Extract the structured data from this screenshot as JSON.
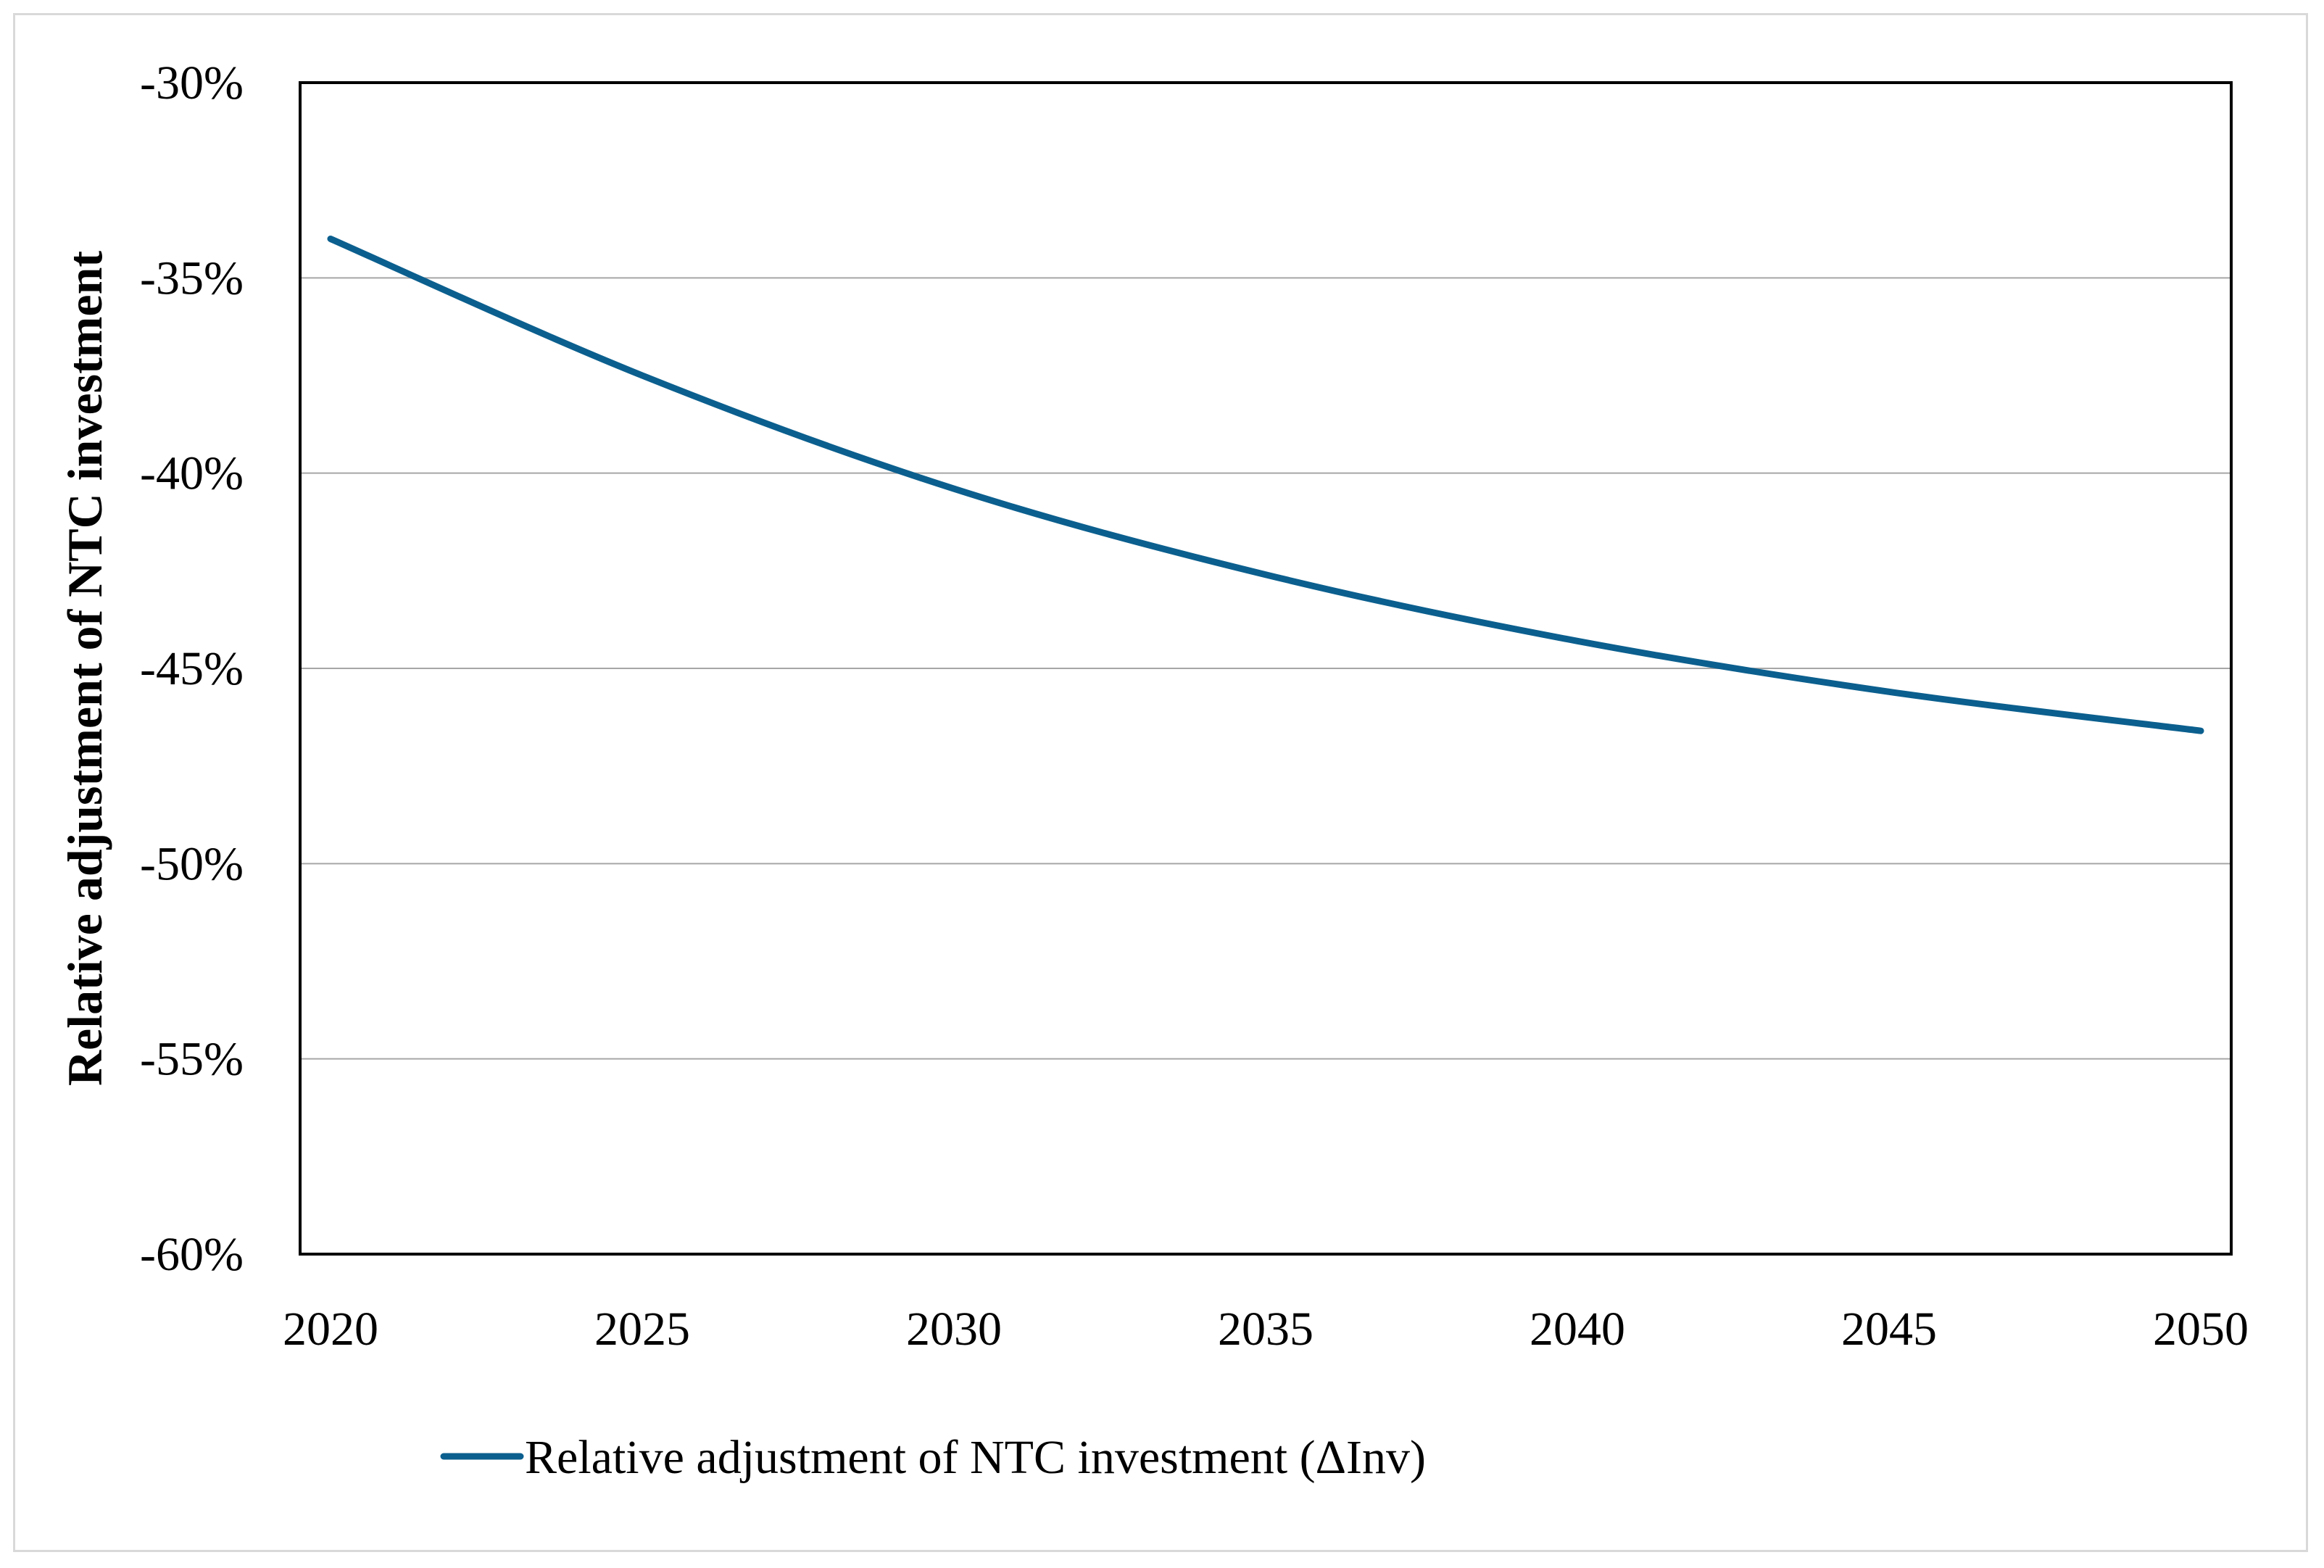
{
  "chart_data": {
    "type": "line",
    "title": "",
    "xlabel": "",
    "ylabel": "Relative adjustment of NTC investment",
    "xlim": [
      2020,
      2050
    ],
    "ylim": [
      -60,
      -30
    ],
    "x_ticks": [
      2020,
      2025,
      2030,
      2035,
      2040,
      2045,
      2050
    ],
    "x_tick_labels": [
      "2020",
      "2025",
      "2030",
      "2035",
      "2040",
      "2045",
      "2050"
    ],
    "y_ticks": [
      -30,
      -35,
      -40,
      -45,
      -50,
      -55,
      -60
    ],
    "y_tick_labels": [
      "-30%",
      "-35%",
      "-40%",
      "-45%",
      "-50%",
      "-55%",
      "-60%"
    ],
    "grid": true,
    "legend_position": "bottom",
    "series": [
      {
        "name": "Relative adjustment of NTC investment (ΔInv)",
        "color": "#0b5f8e",
        "x": [
          2020,
          2025,
          2030,
          2035,
          2040,
          2045,
          2050
        ],
        "values": [
          -34.0,
          -37.5,
          -40.4,
          -42.6,
          -44.3,
          -45.6,
          -46.6
        ]
      }
    ]
  }
}
